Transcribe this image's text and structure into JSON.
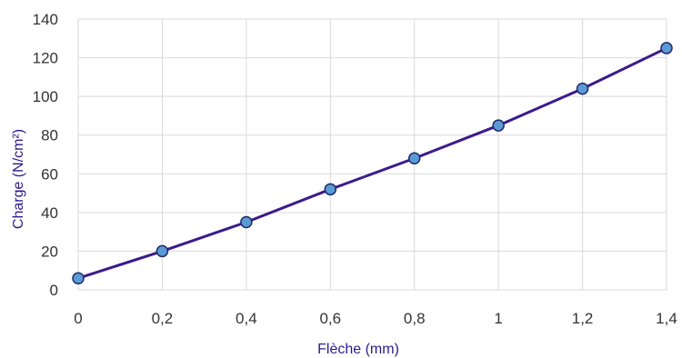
{
  "chart_data": {
    "type": "line",
    "title": "",
    "xlabel": "Flèche (mm)",
    "ylabel": "Charge (N/cm²)",
    "x": [
      0,
      0.2,
      0.4,
      0.6,
      0.8,
      1.0,
      1.2,
      1.4
    ],
    "x_tick_labels": [
      "0",
      "0,2",
      "0,4",
      "0,6",
      "0,8",
      "1",
      "1,2",
      "1,4"
    ],
    "y_ticks": [
      0,
      20,
      40,
      60,
      80,
      100,
      120,
      140
    ],
    "xlim": [
      0,
      1.4
    ],
    "ylim": [
      0,
      140
    ],
    "grid": true,
    "legend": "none",
    "series": [
      {
        "values": [
          6,
          20,
          35,
          52,
          68,
          85,
          104,
          125
        ]
      }
    ],
    "colors": {
      "line": "#3c1a8c",
      "marker_fill": "#5b9bd5",
      "marker_stroke": "#1f2a6b",
      "grid": "#d9d9d9",
      "axis_title": "#2e1a8c",
      "tick_text": "#333333"
    }
  }
}
